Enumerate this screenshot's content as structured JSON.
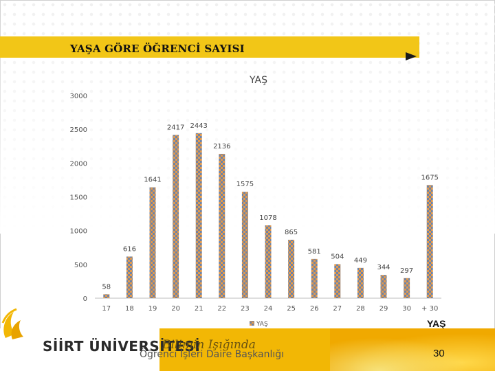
{
  "slide": {
    "title": "YAŞA GÖRE ÖĞRENCİ SAYISI",
    "corner_label": "YAŞ",
    "university": "SİİRT ÜNİVERSİTESİ",
    "slogan": "Bilimin Işığında",
    "department": "Öğrenci İşleri Daire Başkanlığı",
    "page_number": "30"
  },
  "colors": {
    "accent_yellow": "#f2c617",
    "bar_orange": "#e39a4d",
    "bar_blue": "#6e83a6"
  },
  "chart_data": {
    "type": "bar",
    "title": "YAŞ",
    "categories": [
      "17",
      "18",
      "19",
      "20",
      "21",
      "22",
      "23",
      "24",
      "25",
      "26",
      "27",
      "28",
      "29",
      "30",
      "+ 30"
    ],
    "series": [
      {
        "name": "YAŞ",
        "values": [
          58,
          616,
          1641,
          2417,
          2443,
          2136,
          1575,
          1078,
          865,
          581,
          504,
          449,
          344,
          297,
          1675
        ]
      }
    ],
    "ylim": [
      0,
      3000
    ],
    "yticks": [
      0,
      500,
      1000,
      1500,
      2000,
      2500,
      3000
    ],
    "grid": false,
    "legend": "bottom"
  }
}
